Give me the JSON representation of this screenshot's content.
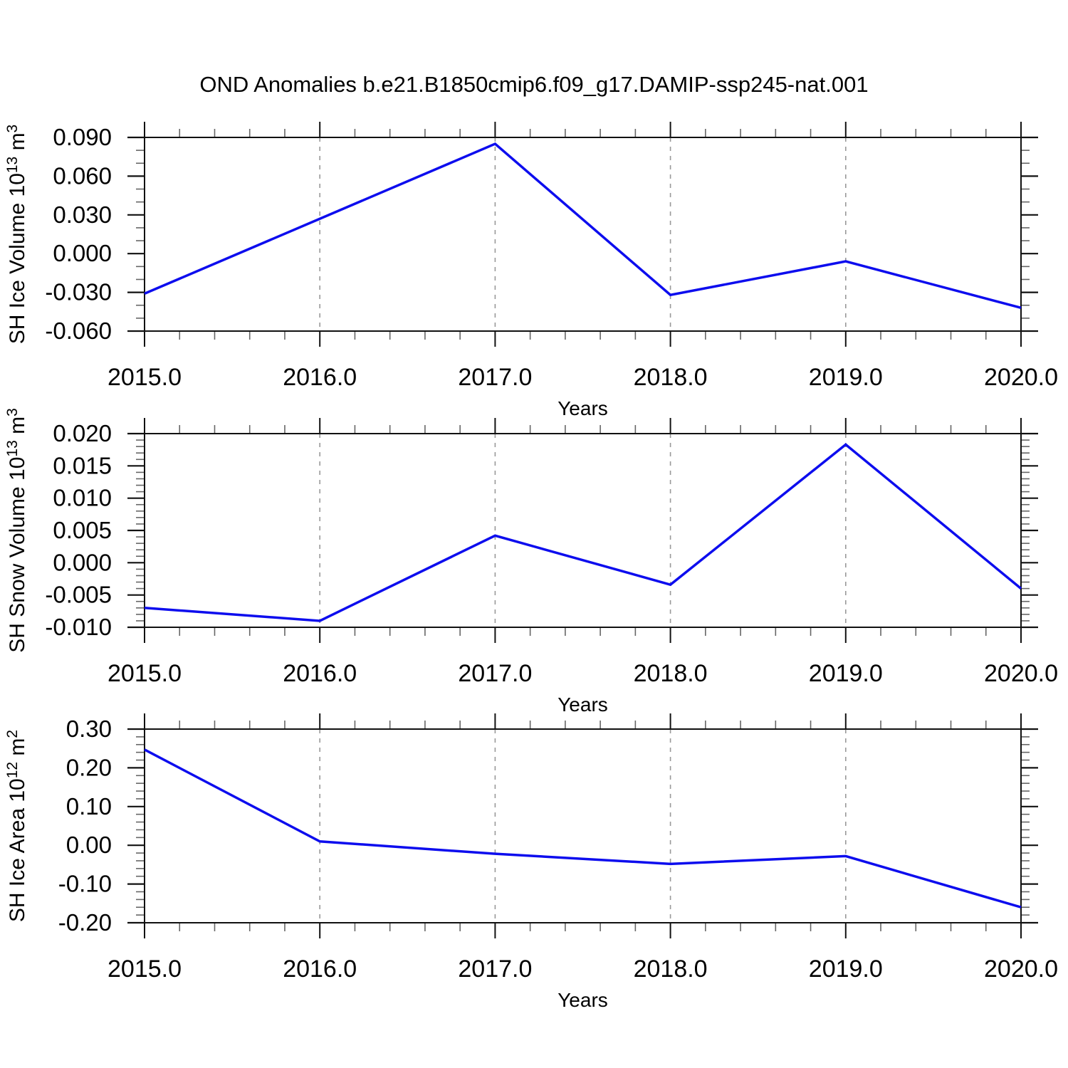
{
  "colors": {
    "line": "#0d0dee",
    "axis": "#111111",
    "minor_tick": "#666666",
    "gridline": "#999999",
    "background": "#ffffff"
  },
  "chart_data": {
    "type": "line",
    "title": "OND Anomalies b.e21.B1850cmip6.f09_g17.DAMIP-ssp245-nat.001",
    "xlabel": "Years",
    "x": [
      2015,
      2016,
      2017,
      2018,
      2019,
      2020
    ],
    "x_tick_labels": [
      "2015.0",
      "2016.0",
      "2017.0",
      "2018.0",
      "2019.0",
      "2020.0"
    ],
    "x_minor_step": 0.2,
    "grid_x_years": [
      2016,
      2017,
      2018,
      2019
    ],
    "legend": "none",
    "grid": "vertical-dashed-only",
    "panels": [
      {
        "name": "sh-ice-volume",
        "ylabel": "SH Ice Volume 10^13 m^3",
        "ylabel_parts": {
          "base1": "SH Ice Volume 10",
          "sup1": "13",
          "base2": " m",
          "sup2": "3"
        },
        "ylim": [
          -0.06,
          0.09
        ],
        "yticks": [
          0.09,
          0.06,
          0.03,
          0.0,
          -0.03,
          -0.06
        ],
        "ytick_labels": [
          "0.090",
          "0.060",
          "0.030",
          "0.000",
          "-0.030",
          "-0.060"
        ],
        "y_minor_step": 0.01,
        "values": [
          -0.031,
          0.027,
          0.085,
          -0.032,
          -0.006,
          -0.042
        ]
      },
      {
        "name": "sh-snow-volume",
        "ylabel": "SH Snow Volume 10^13 m^3",
        "ylabel_parts": {
          "base1": "SH Snow Volume 10",
          "sup1": "13",
          "base2": " m",
          "sup2": "3"
        },
        "ylim": [
          -0.01,
          0.02
        ],
        "yticks": [
          0.02,
          0.015,
          0.01,
          0.005,
          0.0,
          -0.005,
          -0.01
        ],
        "ytick_labels": [
          "0.020",
          "0.015",
          "0.010",
          "0.005",
          "0.000",
          "-0.005",
          "-0.010"
        ],
        "y_minor_step": 0.001,
        "values": [
          -0.007,
          -0.009,
          0.0042,
          -0.0034,
          0.0183,
          -0.004
        ]
      },
      {
        "name": "sh-ice-area",
        "ylabel": "SH Ice Area 10^12 m^2",
        "ylabel_parts": {
          "base1": "SH Ice Area 10",
          "sup1": "12",
          "base2": " m",
          "sup2": "2"
        },
        "ylim": [
          -0.2,
          0.3
        ],
        "yticks": [
          0.3,
          0.2,
          0.1,
          0.0,
          -0.1,
          -0.2
        ],
        "ytick_labels": [
          "0.30",
          "0.20",
          "0.10",
          "0.00",
          "-0.10",
          "-0.20"
        ],
        "y_minor_step": 0.02,
        "values": [
          0.247,
          0.01,
          -0.022,
          -0.048,
          -0.028,
          -0.16
        ]
      }
    ]
  }
}
